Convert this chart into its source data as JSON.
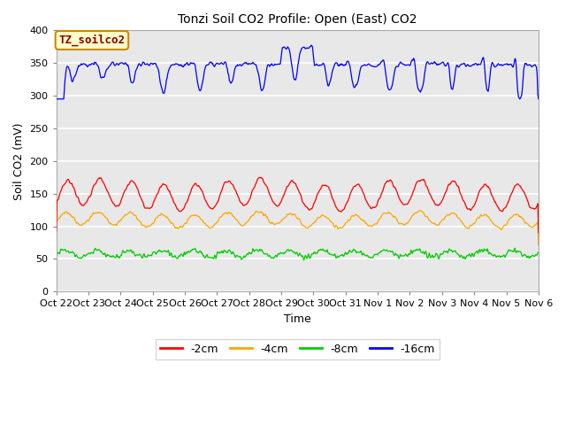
{
  "title": "Tonzi Soil CO2 Profile: Open (East) CO2",
  "ylabel": "Soil CO2 (mV)",
  "xlabel": "Time",
  "watermark": "TZ_soilco2",
  "ylim": [
    0,
    400
  ],
  "yticks": [
    0,
    50,
    100,
    150,
    200,
    250,
    300,
    350,
    400
  ],
  "x_tick_labels": [
    "Oct 22",
    "Oct 23",
    "Oct 24",
    "Oct 25",
    "Oct 26",
    "Oct 27",
    "Oct 28",
    "Oct 29",
    "Oct 30",
    "Oct 31",
    "Nov 1",
    "Nov 2",
    "Nov 3",
    "Nov 4",
    "Nov 5",
    "Nov 6"
  ],
  "n_days": 15,
  "fig_bg": "#ffffff",
  "plot_bg": "#e8e8e8",
  "series_minus2cm_color": "#ff0000",
  "series_minus4cm_color": "#ffa500",
  "series_minus8cm_color": "#00cc00",
  "series_minus16cm_color": "#0000ff",
  "legend_colors": [
    "#ff0000",
    "#ffa500",
    "#00cc00",
    "#0000ff"
  ],
  "legend_labels": [
    "-2cm",
    "-4cm",
    "-8cm",
    "-16cm"
  ]
}
